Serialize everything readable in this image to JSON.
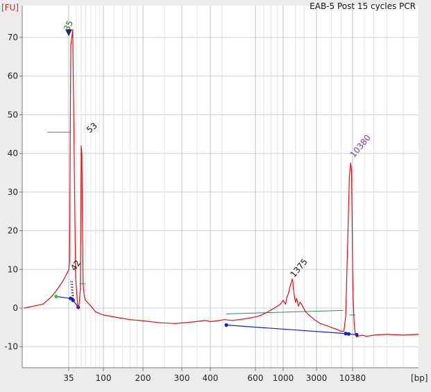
{
  "chart_data": {
    "type": "line",
    "title": "EAB-5 Post 15 cycles PCR",
    "ylabel": "[FU]",
    "xlabel": "[bp]",
    "ylim": [
      -14,
      77
    ],
    "grid": true,
    "yticks": [
      "-10",
      "0",
      "10",
      "20",
      "30",
      "40",
      "50",
      "60",
      "70"
    ],
    "xticks": [
      "35",
      "100",
      "200",
      "300",
      "400",
      "600",
      "1000",
      "3000",
      "10380"
    ],
    "peak_labels": [
      {
        "text": "35",
        "color": "#1a7a1a"
      },
      {
        "text": "53",
        "color": "#111111"
      },
      {
        "text": "1375",
        "color": "#111111"
      },
      {
        "text": "10380",
        "color": "#7a32b8"
      },
      {
        "text": "42",
        "color": "#111111"
      }
    ],
    "series": [
      {
        "color": "#e01010",
        "x": [
          30,
          32,
          33,
          33.7,
          34.3,
          34.8,
          35.2,
          36,
          37.5,
          40,
          44,
          47.5,
          49.5,
          51.5,
          52.3,
          53,
          54,
          55,
          56,
          58,
          60,
          70,
          80,
          100,
          130,
          160,
          200,
          240,
          280,
          320,
          360,
          380,
          400,
          430,
          460,
          500,
          550,
          600,
          650,
          700,
          750,
          800,
          850,
          900,
          950,
          1000,
          1080,
          1140,
          1200,
          1250,
          1300,
          1350,
          1375,
          1400,
          1450,
          1500,
          1560,
          1650,
          1750,
          1900,
          2100,
          2400,
          2800,
          3400,
          4200,
          5000,
          6000,
          7000,
          7700,
          8200,
          8800,
          9300,
          9700,
          10000,
          10200,
          10380,
          10600,
          10900,
          11300,
          11800,
          12600,
          14000,
          16000,
          20000,
          30000,
          50000,
          80000
        ],
        "y": [
          0,
          1,
          3,
          5,
          7,
          9,
          10,
          12,
          68,
          72,
          8,
          0,
          1,
          5,
          25,
          42,
          40,
          20,
          6,
          3,
          2,
          0.5,
          -1,
          -1.8,
          -2.5,
          -3,
          -3.3,
          -3.8,
          -4,
          -3.7,
          -3.4,
          -3.2,
          -3.5,
          -3.3,
          -3.0,
          -3.2,
          -2.8,
          -2.3,
          -2.0,
          -1.5,
          -1.0,
          -0.5,
          0,
          0.5,
          1.0,
          2.0,
          1.0,
          3.0,
          4.0,
          5.5,
          6.5,
          7.5,
          7.0,
          5.0,
          3.0,
          1.5,
          2.5,
          0.5,
          1.5,
          0.5,
          -1.0,
          -2.0,
          -3.0,
          -4.0,
          -4.5,
          -5.0,
          -5.5,
          -6.0,
          -6.0,
          -2.0,
          18.0,
          34.0,
          37.5,
          36.0,
          24.0,
          10.0,
          2.0,
          -4.0,
          -7.0,
          -7.5,
          -7.2,
          -7.0,
          -7.3,
          -7.0,
          -6.8,
          -7.0,
          -6.8
        ]
      }
    ]
  }
}
